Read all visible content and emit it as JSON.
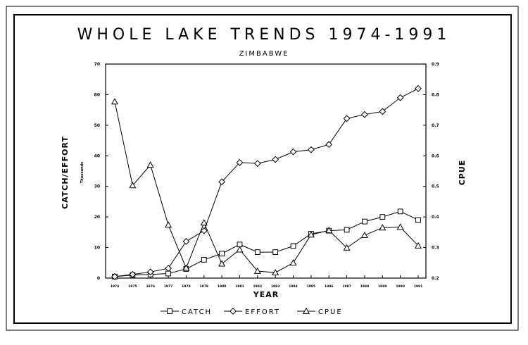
{
  "chart_data": {
    "type": "line",
    "title": "WHOLE LAKE TRENDS 1974-1991",
    "subtitle": "ZIMBABWE",
    "xlabel": "YEAR",
    "ylabel_left": "CATCH/EFFORT",
    "ylabel_left_sub": "Thousands",
    "ylabel_right": "CPUE",
    "x": [
      "1974",
      "1975",
      "1976",
      "1977",
      "1978",
      "1979",
      "1980",
      "1981",
      "1982",
      "1983",
      "1984",
      "1985",
      "1986",
      "1987",
      "1988",
      "1989",
      "1990",
      "1991"
    ],
    "ylim_left": [
      0,
      70
    ],
    "yticks_left": [
      "0",
      "10",
      "20",
      "30",
      "40",
      "50",
      "60",
      "70"
    ],
    "ylim_right": [
      0.2,
      0.9
    ],
    "yticks_right": [
      "0.2",
      "0.3",
      "0.4",
      "0.5",
      "0.6",
      "0.7",
      "0.8",
      "0.9"
    ],
    "series": [
      {
        "name": "CATCH",
        "axis": "left",
        "marker": "square",
        "values": [
          0.5,
          1.0,
          1.2,
          1.5,
          3.0,
          6.0,
          8.0,
          11.0,
          8.5,
          8.5,
          10.5,
          14.5,
          15.5,
          15.8,
          18.5,
          20.0,
          21.8,
          19.0
        ]
      },
      {
        "name": "EFFORT",
        "axis": "left",
        "marker": "diamond",
        "values": [
          0.5,
          1.2,
          2.0,
          3.2,
          12.0,
          15.5,
          31.5,
          37.8,
          37.5,
          38.8,
          41.3,
          42.0,
          43.7,
          52.2,
          53.5,
          54.5,
          59.0,
          62.0
        ]
      },
      {
        "name": "CPUE",
        "axis": "right",
        "marker": "triangle",
        "values": [
          0.777,
          0.503,
          0.57,
          0.374,
          0.233,
          0.381,
          0.247,
          0.293,
          0.223,
          0.218,
          0.25,
          0.342,
          0.356,
          0.299,
          0.34,
          0.365,
          0.367,
          0.306
        ]
      }
    ],
    "legend_position": "bottom",
    "grid": false
  }
}
